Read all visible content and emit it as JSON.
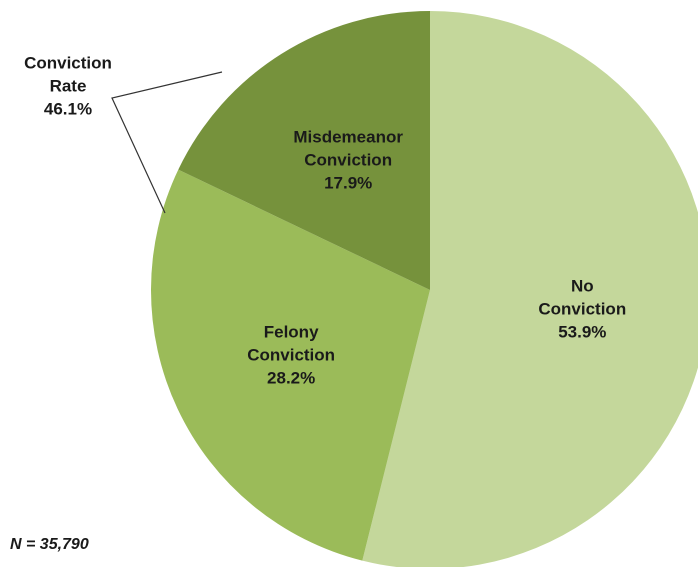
{
  "chart_data": {
    "type": "pie",
    "categories": [
      "No Conviction",
      "Felony Conviction",
      "Misdemeanor Conviction"
    ],
    "values": [
      53.9,
      28.2,
      17.9
    ],
    "value_labels": [
      "53.9%",
      "28.2%",
      "17.9%"
    ],
    "colors": [
      "#c4d79b",
      "#9bbb59",
      "#76923c"
    ],
    "annotation": {
      "label": "Conviction Rate",
      "value": 46.1,
      "value_label": "46.1%"
    },
    "note": "N = 35,790"
  }
}
